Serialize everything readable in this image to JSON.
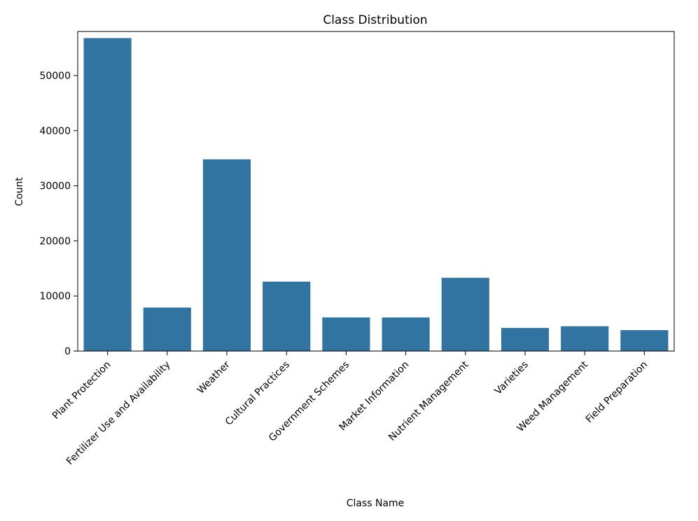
{
  "chart_data": {
    "type": "bar",
    "title": "Class Distribution",
    "xlabel": "Class Name",
    "ylabel": "Count",
    "categories": [
      "Plant Protection",
      "Fertilizer Use and Availability",
      "Weather",
      "Cultural Practices",
      "Government Schemes",
      "Market Information",
      "Nutrient Management",
      "Varieties",
      "Weed Management",
      "Field Preparation"
    ],
    "values": [
      56800,
      7900,
      34800,
      12600,
      6100,
      6100,
      13300,
      4200,
      4500,
      3800
    ],
    "yticks": [
      0,
      10000,
      20000,
      30000,
      40000,
      50000
    ],
    "ytick_labels": [
      "0",
      "10000",
      "20000",
      "30000",
      "40000",
      "50000"
    ],
    "ylim": [
      0,
      58000
    ],
    "bar_color": "#3274a1",
    "grid": false
  }
}
